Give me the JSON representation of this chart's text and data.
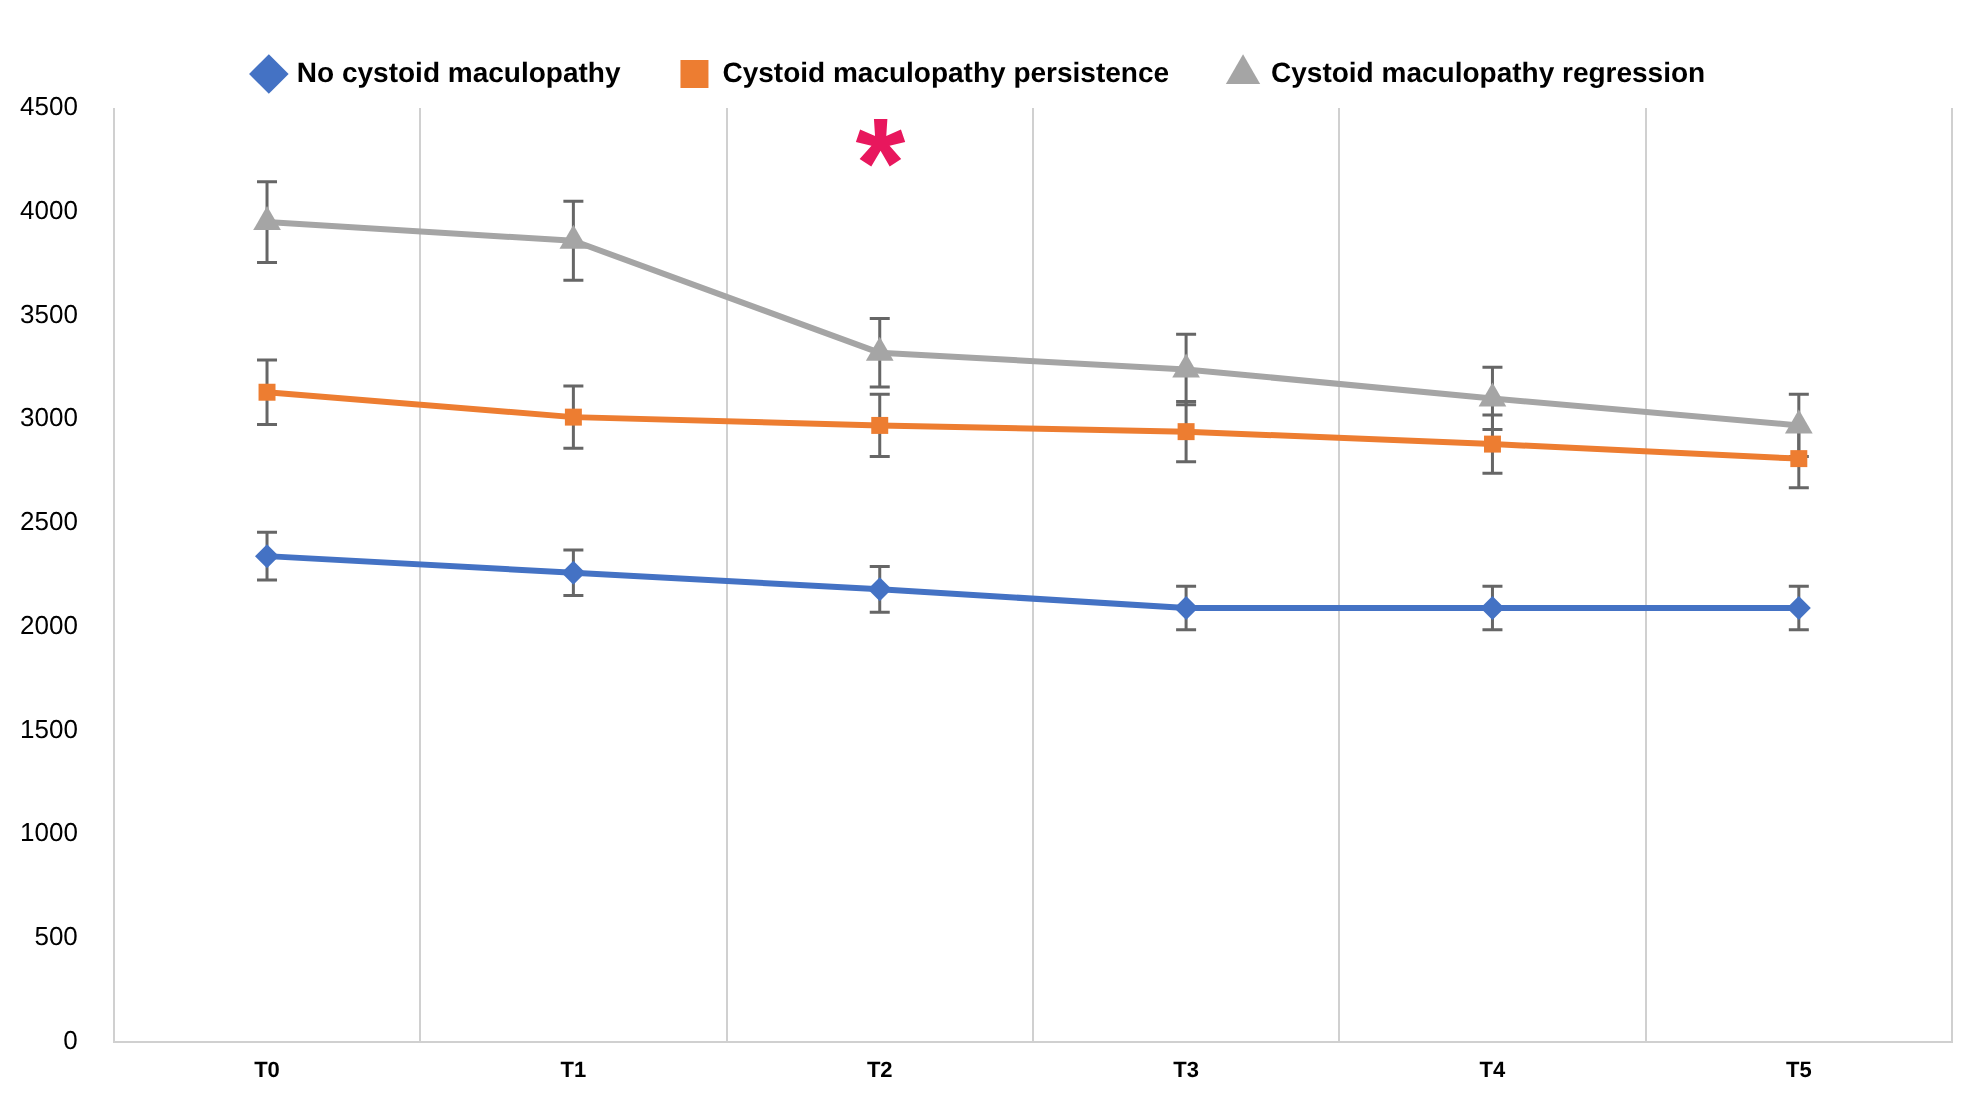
{
  "chart_data": {
    "type": "line",
    "categories": [
      "T0",
      "T1",
      "T2",
      "T3",
      "T4",
      "T5"
    ],
    "series": [
      {
        "name": "No cystoid maculopathy",
        "color": "#4472c4",
        "marker": "diamond",
        "values": [
          2340,
          2260,
          2180,
          2090,
          2090,
          2090
        ],
        "errors": [
          115,
          110,
          110,
          105,
          105,
          105
        ]
      },
      {
        "name": "Cystoid maculopathy persistence",
        "color": "#ed7d31",
        "marker": "square",
        "values": [
          3130,
          3010,
          2970,
          2940,
          2880,
          2810
        ],
        "errors": [
          155,
          150,
          150,
          145,
          140,
          140
        ]
      },
      {
        "name": "Cystoid maculopathy regression",
        "color": "#a5a5a5",
        "marker": "triangle",
        "values": [
          3950,
          3860,
          3320,
          3240,
          3100,
          2970
        ],
        "errors": [
          195,
          190,
          165,
          170,
          150,
          150
        ]
      }
    ],
    "ylim": [
      0,
      4500
    ],
    "yticks": [
      0,
      500,
      1000,
      1500,
      2000,
      2500,
      3000,
      3500,
      4000,
      4500
    ],
    "grid": "x",
    "legend": "top",
    "annotations": [
      "*"
    ]
  }
}
